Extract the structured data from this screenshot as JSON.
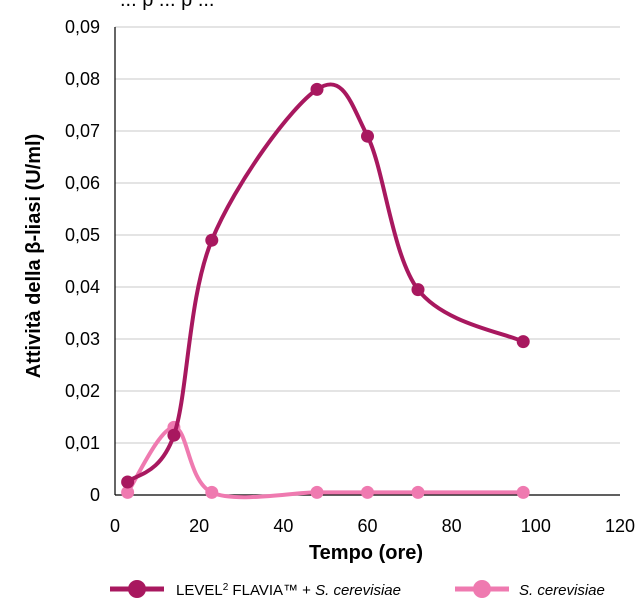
{
  "chart_data": {
    "type": "line",
    "title_fragment": "... p ... p ...",
    "xlabel": "Tempo (ore)",
    "ylabel": "Attività della β-liasi (U/ml)",
    "xlim": [
      0,
      120
    ],
    "ylim": [
      0,
      0.09
    ],
    "x_ticks": [
      "0",
      "20",
      "40",
      "60",
      "80",
      "100",
      "120"
    ],
    "y_ticks": [
      "0",
      "0,01",
      "0,02",
      "0,03",
      "0,04",
      "0,05",
      "0,06",
      "0,07",
      "0,08",
      "0,09"
    ],
    "grid": "horizontal",
    "legend_position": "bottom",
    "series": [
      {
        "name": "LEVEL² FLAVIA™ + S. cerevisiae",
        "legend_main": "LEVEL",
        "legend_sup": "2",
        "legend_rest": " FLAVIA™ + ",
        "legend_italic": "S. cerevisiae",
        "color": "#a8185f",
        "x": [
          3,
          14,
          23,
          48,
          60,
          72,
          97
        ],
        "y": [
          0.0025,
          0.0115,
          0.049,
          0.078,
          0.069,
          0.0395,
          0.0295
        ]
      },
      {
        "name": "S. cerevisiae",
        "legend_italic": "S. cerevisiae",
        "color": "#ef7ab0",
        "x": [
          3,
          14,
          23,
          48,
          60,
          72,
          97
        ],
        "y": [
          0.0005,
          0.013,
          0.0005,
          0.0005,
          0.0005,
          0.0005,
          0.0005
        ]
      }
    ]
  }
}
